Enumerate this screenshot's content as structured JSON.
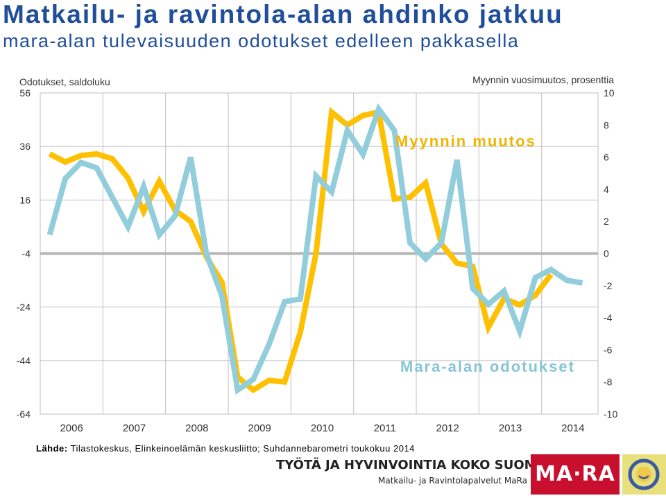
{
  "header": {
    "title": "Matkailu- ja ravintola-alan ahdinko jatkuu",
    "subtitle": "mara-alan tulevaisuuden odotukset edelleen pakkasella"
  },
  "source": {
    "label": "Lähde:",
    "text": "Tilastokeskus, Elinkeinoelämän keskusliitto; Suhdannebarometri toukokuu 2014"
  },
  "footer": {
    "slogan": "TYÖTÄ JA HYVINVOINTIA KOKO SUOMEEN",
    "org": "Matkailu- ja Ravintolapalvelut MaRa ry",
    "logo_text": "MA·RA"
  },
  "chart_data": {
    "type": "line",
    "left_axis": {
      "title": "Odotukset, saldoluku",
      "ticks": [
        56,
        36,
        16,
        -4,
        -24,
        -44,
        -64
      ],
      "range": [
        -64,
        56
      ]
    },
    "right_axis": {
      "title": "Myynnin vuosimuutos, prosenttia",
      "ticks": [
        10,
        8,
        6,
        4,
        2,
        0,
        -2,
        -4,
        -6,
        -8,
        -10
      ],
      "range": [
        -10,
        10
      ]
    },
    "x_labels": [
      "2006",
      "2007",
      "2008",
      "2009",
      "2010",
      "2011",
      "2012",
      "2013",
      "2014"
    ],
    "x_range": [
      2006,
      2014.75
    ],
    "grid": true,
    "series": [
      {
        "name": "Myynnin muutos",
        "axis": "right",
        "color": "#ffc000",
        "x": [
          2006.0,
          2006.25,
          2006.5,
          2006.75,
          2007.0,
          2007.25,
          2007.5,
          2007.75,
          2008.0,
          2008.25,
          2008.5,
          2008.75,
          2009.0,
          2009.25,
          2009.5,
          2009.75,
          2010.0,
          2010.25,
          2010.5,
          2010.75,
          2011.0,
          2011.25,
          2011.5,
          2011.75,
          2012.0,
          2012.25,
          2012.5,
          2012.75,
          2013.0,
          2013.25,
          2013.5,
          2013.75,
          2014.0
        ],
        "values": [
          6.2,
          5.7,
          6.1,
          6.2,
          5.9,
          4.7,
          2.6,
          4.5,
          2.7,
          2.0,
          -0.2,
          -1.8,
          -7.7,
          -8.5,
          -7.9,
          -8.0,
          -4.9,
          0.0,
          8.8,
          8.0,
          8.6,
          8.8,
          3.4,
          3.5,
          4.4,
          0.6,
          -0.6,
          -0.8,
          -4.6,
          -2.8,
          -3.2,
          -2.6,
          -1.3
        ]
      },
      {
        "name": "Mara-alan odotukset",
        "axis": "left",
        "color": "#92cddc",
        "x": [
          2006.0,
          2006.25,
          2006.5,
          2006.75,
          2007.0,
          2007.25,
          2007.5,
          2007.75,
          2008.0,
          2008.25,
          2008.5,
          2008.75,
          2009.0,
          2009.25,
          2009.5,
          2009.75,
          2010.0,
          2010.25,
          2010.5,
          2010.75,
          2011.0,
          2011.25,
          2011.5,
          2011.75,
          2012.0,
          2012.25,
          2012.5,
          2012.75,
          2013.0,
          2013.25,
          2013.5,
          2013.75,
          2014.0,
          2014.25,
          2014.5
        ],
        "values": [
          3,
          24,
          30,
          28,
          17,
          6,
          21,
          3,
          10,
          32,
          -4,
          -20,
          -55,
          -51,
          -38,
          -22,
          -21,
          25,
          19,
          42,
          33,
          50,
          42,
          0,
          -6,
          0,
          31,
          -17,
          -23,
          -18,
          -33,
          -13,
          -10,
          -14,
          -15
        ]
      }
    ],
    "annotations": [
      "Myynnin muutos",
      "Mara-alan odotukset"
    ]
  }
}
